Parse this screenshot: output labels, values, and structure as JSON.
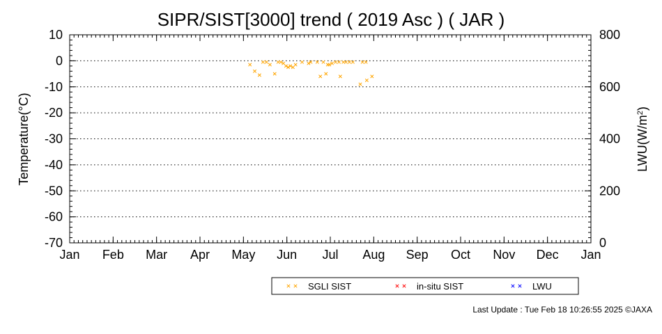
{
  "chart_data": {
    "type": "scatter",
    "title": "SIPR/SIST[3000] trend ( 2019 Asc ) ( JAR )",
    "ylabel": "Temperature(°C)",
    "y2label_base": "LWU(W/m",
    "y2label_sup": "2",
    "y2label_end": ")",
    "xlabel": "",
    "ylim": [
      -70,
      10
    ],
    "y2lim": [
      0,
      800
    ],
    "xlim": [
      0,
      12
    ],
    "y_ticks": [
      10,
      0,
      -10,
      -20,
      -30,
      -40,
      -50,
      -60,
      -70
    ],
    "y_tick_labels": [
      "10",
      "0",
      "-10",
      "-20",
      "-30",
      "-40",
      "-50",
      "-60",
      "-70"
    ],
    "y2_ticks": [
      800,
      600,
      400,
      200,
      0
    ],
    "y2_tick_labels": [
      "800",
      "600",
      "400",
      "200",
      "0"
    ],
    "x_ticks": [
      0,
      1,
      2,
      3,
      4,
      5,
      6,
      7,
      8,
      9,
      10,
      11,
      12
    ],
    "x_tick_labels": [
      "Jan",
      "Feb",
      "Mar",
      "Apr",
      "May",
      "Jun",
      "Jul",
      "Aug",
      "Sep",
      "Oct",
      "Nov",
      "Dec",
      "Jan"
    ],
    "grid": "horizontal dotted",
    "legend_position": "bottom",
    "series": [
      {
        "name": "SGLI SIST",
        "color": "#ffa500",
        "marker": "x",
        "points": [
          [
            4.15,
            -1.5
          ],
          [
            4.26,
            -4
          ],
          [
            4.37,
            -5.5
          ],
          [
            4.45,
            -0.5
          ],
          [
            4.53,
            -0.5
          ],
          [
            4.61,
            -1.5
          ],
          [
            4.72,
            -5
          ],
          [
            4.8,
            -0.5
          ],
          [
            4.86,
            -0.5
          ],
          [
            4.92,
            -1
          ],
          [
            4.98,
            -2
          ],
          [
            5.03,
            -2.5
          ],
          [
            5.08,
            -2
          ],
          [
            5.14,
            -2.5
          ],
          [
            5.2,
            -1.5
          ],
          [
            5.35,
            -0.5
          ],
          [
            5.5,
            -1
          ],
          [
            5.55,
            -0.5
          ],
          [
            5.7,
            -0.5
          ],
          [
            5.77,
            -6
          ],
          [
            5.84,
            -0.5
          ],
          [
            5.9,
            -5
          ],
          [
            5.94,
            -1.5
          ],
          [
            5.98,
            -1.5
          ],
          [
            6.04,
            -1
          ],
          [
            6.12,
            -0.5
          ],
          [
            6.2,
            -0.5
          ],
          [
            6.23,
            -6
          ],
          [
            6.3,
            -0.5
          ],
          [
            6.36,
            -0.5
          ],
          [
            6.44,
            -0.5
          ],
          [
            6.52,
            -0.5
          ],
          [
            6.69,
            -9
          ],
          [
            6.74,
            -0.5
          ],
          [
            6.82,
            -0.5
          ],
          [
            6.84,
            -7.5
          ],
          [
            6.96,
            -6
          ]
        ]
      },
      {
        "name": "in-situ SIST",
        "color": "#ff0000",
        "marker": "x",
        "points": []
      },
      {
        "name": "LWU",
        "color": "#0000ff",
        "marker": "x",
        "points": []
      }
    ]
  },
  "footer": {
    "last_update": "Last Update : Tue Feb 18 10:26:55 2025  ©JAXA"
  }
}
